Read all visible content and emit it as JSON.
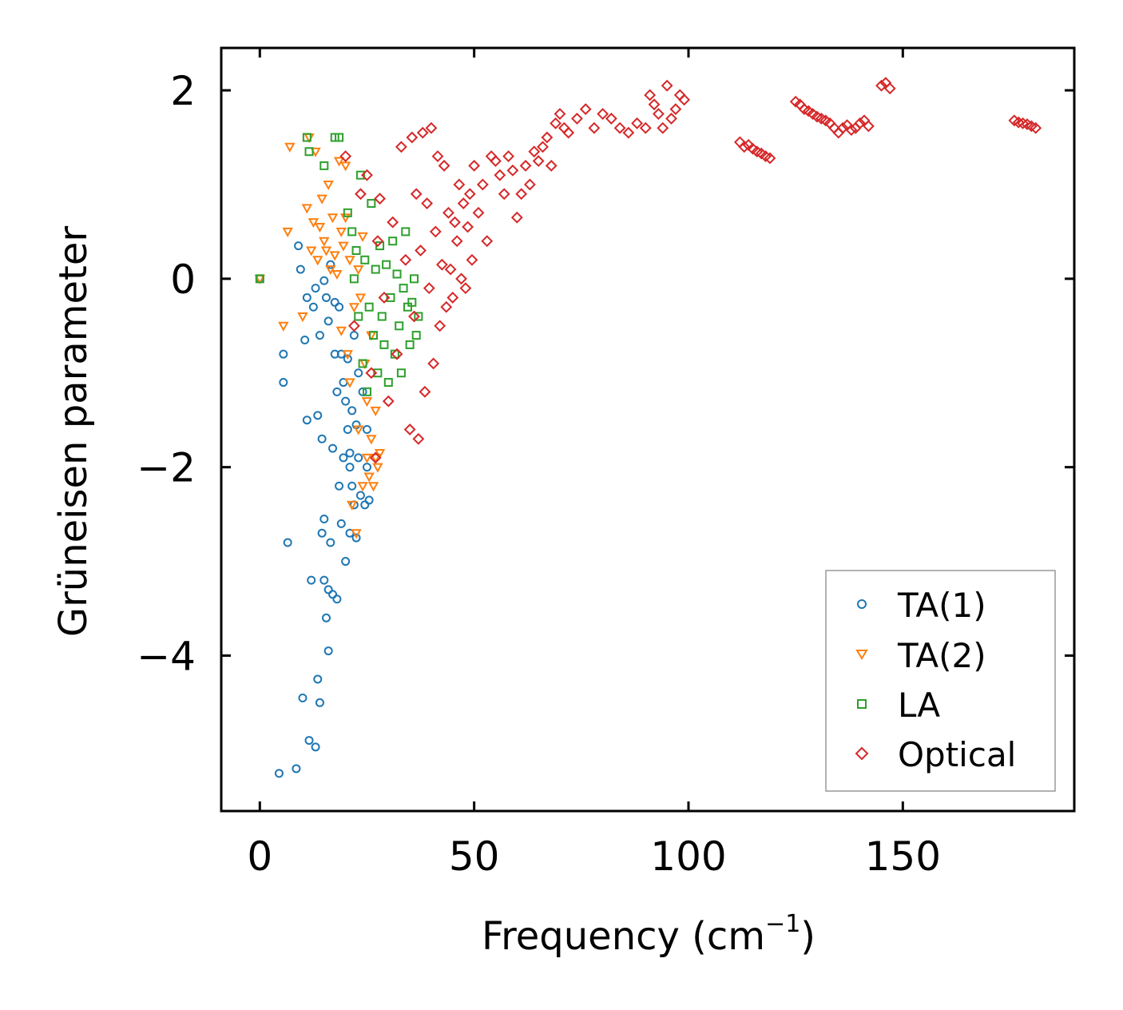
{
  "chart_data": {
    "type": "scatter",
    "title": "",
    "xlabel": "Frequency (cm",
    "xlabel_sup": "−1",
    "xlabel_close": ")",
    "ylabel": "Grüneisen parameter",
    "xlim": [
      -9,
      190
    ],
    "ylim": [
      -5.65,
      2.45
    ],
    "xticks": [
      0,
      50,
      100,
      150
    ],
    "xtick_labels": [
      "0",
      "50",
      "100",
      "150"
    ],
    "yticks": [
      2,
      0,
      -2,
      -4
    ],
    "ytick_labels": [
      "2",
      "0",
      "−2",
      "−4"
    ],
    "legend_position": "lower-right",
    "series": [
      {
        "name": "TA(1)",
        "marker": "circle",
        "color": "#1f77b4",
        "x": [
          0,
          4.5,
          5.5,
          5.5,
          6.5,
          8.5,
          9,
          9.5,
          10,
          10.5,
          11,
          11,
          11.5,
          12,
          12.5,
          13,
          13,
          13.5,
          13.5,
          14,
          14,
          14.5,
          14.5,
          15,
          15,
          15,
          15.5,
          15.5,
          16,
          16,
          16,
          16.5,
          16.5,
          17,
          17,
          17.5,
          17.5,
          18,
          18,
          18.5,
          18.5,
          19,
          19,
          19.5,
          19.5,
          20,
          20,
          20.5,
          20.5,
          21,
          21,
          21,
          21.5,
          21.5,
          22,
          22,
          22.5,
          22.5,
          23,
          23,
          23.5,
          24,
          24.5,
          25,
          25,
          25.5
        ],
        "y": [
          0,
          -5.25,
          -0.8,
          -1.1,
          -2.8,
          -5.2,
          0.35,
          0.1,
          -4.45,
          -0.65,
          -0.2,
          -1.5,
          -4.9,
          -3.2,
          -0.3,
          -4.97,
          -0.1,
          -1.45,
          -4.25,
          -4.5,
          -0.6,
          -2.7,
          -1.7,
          -0.02,
          -2.55,
          -3.2,
          -3.6,
          -0.2,
          -3.3,
          -3.95,
          -0.45,
          -2.8,
          0.15,
          -3.35,
          -1.8,
          -0.8,
          -0.25,
          -3.4,
          -1.2,
          -2.2,
          -0.3,
          -0.8,
          -2.6,
          -1.1,
          -1.9,
          -1.3,
          -3.0,
          -1.6,
          -0.85,
          -2.0,
          -2.7,
          -1.85,
          -2.2,
          -1.4,
          -2.4,
          -0.6,
          -2.75,
          -1.55,
          -1.9,
          -1.0,
          -2.3,
          -1.2,
          -2.4,
          -1.6,
          -2.0,
          -2.35
        ]
      },
      {
        "name": "TA(2)",
        "marker": "triangle-down",
        "color": "#ff7f0e",
        "x": [
          0,
          5.5,
          6.5,
          7,
          10,
          11,
          11.5,
          12,
          12.5,
          13,
          13.5,
          14,
          14.5,
          15,
          15.5,
          16,
          16.5,
          17,
          17.5,
          18,
          18.5,
          19,
          19,
          19.5,
          20,
          20,
          20.5,
          21,
          21,
          21.5,
          22,
          22.5,
          23,
          23,
          23.5,
          24,
          24,
          24.5,
          25,
          25,
          25.5,
          26,
          26,
          26.5,
          27,
          27,
          27.5,
          28
        ],
        "y": [
          0,
          -0.5,
          0.5,
          1.4,
          -0.4,
          0.75,
          1.5,
          0.3,
          0.6,
          1.35,
          0.2,
          0.55,
          0.85,
          0.4,
          0.3,
          1.0,
          0.1,
          0.65,
          0.25,
          0.05,
          1.25,
          0.5,
          -0.55,
          0.35,
          0.65,
          1.2,
          -0.8,
          0.2,
          -1.1,
          -2.4,
          -0.3,
          -2.7,
          0.1,
          -1.6,
          -0.2,
          0.45,
          -2.2,
          -0.9,
          -1.3,
          -1.9,
          -2.1,
          -0.6,
          -1.7,
          -2.2,
          -1.4,
          -1.9,
          -2.0,
          -1.85
        ]
      },
      {
        "name": "LA",
        "marker": "square",
        "color": "#2ca02c",
        "x": [
          0,
          11,
          11.5,
          15,
          17.5,
          18.5,
          20.5,
          21.5,
          22,
          22.5,
          23,
          23.5,
          24,
          24.5,
          25,
          25.5,
          26,
          26.5,
          27,
          27.5,
          28,
          28.5,
          29,
          29.5,
          30,
          30.5,
          31,
          31.5,
          32,
          32.5,
          33,
          33.5,
          34,
          34.5,
          35,
          35.5,
          36,
          36.5,
          37
        ],
        "y": [
          0,
          1.5,
          1.35,
          1.2,
          1.5,
          1.5,
          0.7,
          0.5,
          0.0,
          0.3,
          -0.4,
          1.1,
          -0.9,
          0.2,
          -1.2,
          -0.3,
          0.8,
          -0.6,
          0.1,
          -1.0,
          0.35,
          -0.4,
          -0.7,
          0.15,
          -1.1,
          -0.2,
          0.4,
          -0.8,
          0.05,
          -0.5,
          -1.0,
          -0.1,
          0.5,
          -0.3,
          -0.7,
          -0.25,
          0.0,
          -0.6,
          -0.4
        ]
      },
      {
        "name": "Optical",
        "marker": "diamond",
        "color": "#d62728",
        "x": [
          20,
          22,
          23.5,
          25,
          26,
          27,
          27.5,
          28,
          29,
          30,
          31,
          32,
          33,
          34,
          35,
          35.5,
          36,
          36.5,
          37,
          37.5,
          38,
          38.5,
          39,
          39.5,
          40,
          40.5,
          41,
          41.5,
          42,
          42.5,
          43,
          43.5,
          44,
          44.5,
          45,
          45.5,
          46,
          46.5,
          47,
          47.5,
          48,
          48.5,
          49,
          49.5,
          50,
          51,
          52,
          53,
          54,
          55,
          56,
          57,
          58,
          59,
          60,
          61,
          62,
          63,
          64,
          65,
          66,
          67,
          68,
          69,
          70,
          71,
          72,
          74,
          76,
          78,
          80,
          82,
          84,
          86,
          88,
          90,
          91,
          92,
          93,
          94,
          95,
          96,
          97,
          98,
          99,
          112,
          113,
          114,
          115,
          116,
          117,
          118,
          119,
          125,
          126,
          127,
          128,
          129,
          130,
          131,
          132,
          133,
          134,
          135,
          136,
          137,
          138,
          139,
          140,
          141,
          142,
          145,
          146,
          147,
          176,
          177,
          178,
          179,
          180,
          181
        ],
        "y": [
          1.3,
          -0.5,
          0.9,
          1.1,
          -1.0,
          -1.9,
          0.4,
          0.85,
          -0.2,
          -1.3,
          0.6,
          -0.8,
          1.4,
          0.2,
          -1.6,
          1.5,
          -0.4,
          0.9,
          -1.7,
          0.3,
          1.55,
          -1.2,
          0.8,
          -0.1,
          1.6,
          -0.9,
          0.5,
          1.3,
          -0.5,
          0.15,
          1.2,
          -0.3,
          0.7,
          0.1,
          -0.2,
          0.6,
          0.4,
          1.0,
          0.0,
          0.8,
          -0.1,
          0.55,
          0.9,
          0.2,
          1.2,
          0.7,
          1.0,
          0.4,
          1.3,
          1.25,
          1.1,
          0.9,
          1.3,
          1.15,
          0.65,
          0.9,
          1.2,
          1.0,
          1.35,
          1.25,
          1.4,
          1.5,
          1.2,
          1.65,
          1.75,
          1.6,
          1.55,
          1.7,
          1.8,
          1.6,
          1.75,
          1.7,
          1.6,
          1.55,
          1.65,
          1.6,
          1.95,
          1.85,
          1.75,
          1.6,
          2.05,
          1.7,
          1.8,
          1.95,
          1.9,
          1.45,
          1.4,
          1.42,
          1.38,
          1.35,
          1.33,
          1.3,
          1.28,
          1.88,
          1.85,
          1.8,
          1.78,
          1.75,
          1.72,
          1.7,
          1.68,
          1.65,
          1.6,
          1.55,
          1.6,
          1.63,
          1.58,
          1.6,
          1.65,
          1.68,
          1.62,
          2.05,
          2.08,
          2.02,
          1.68,
          1.66,
          1.65,
          1.64,
          1.62,
          1.6
        ]
      }
    ]
  }
}
